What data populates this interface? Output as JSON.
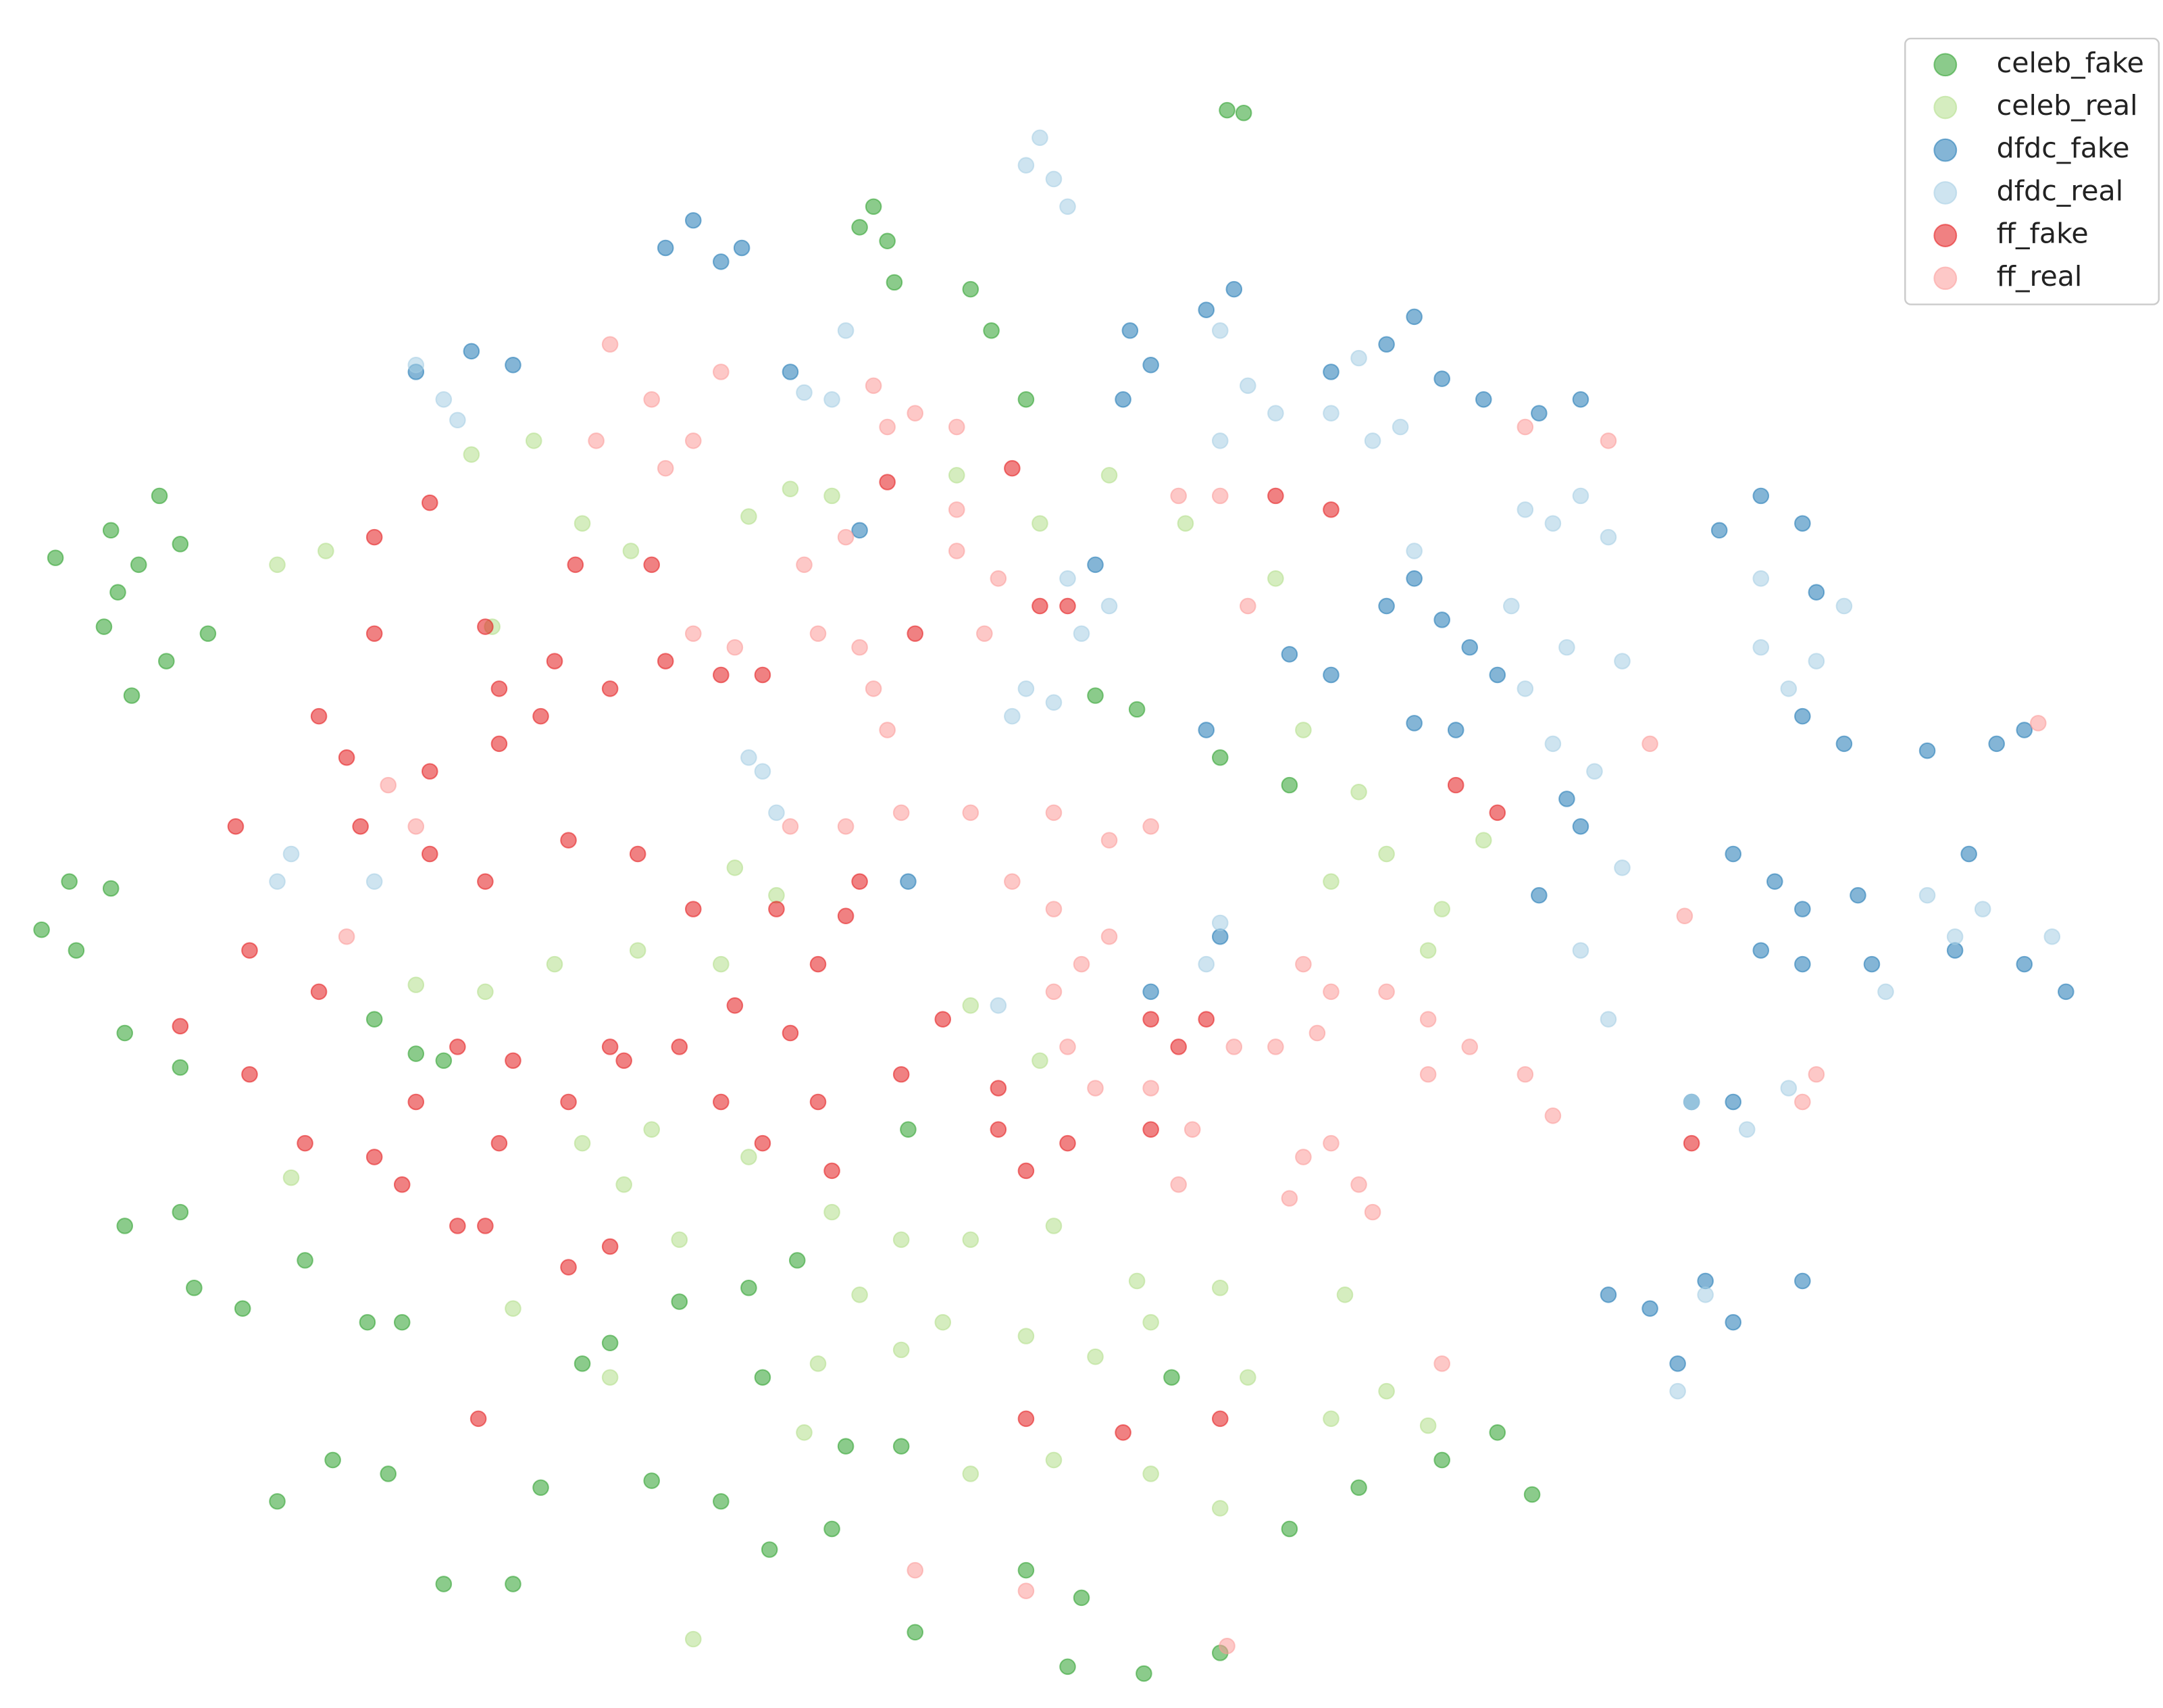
{
  "chart_data": {
    "type": "scatter",
    "xlim": [
      0,
      1560
    ],
    "ylim": [
      1240,
      0
    ],
    "alpha": 0.55,
    "legend": "upper right",
    "series": [
      {
        "name": "celeb_fake",
        "color": "#2ca02c",
        "x": [
          885,
          897,
          630,
          640,
          620,
          645,
          700,
          715,
          740,
          40,
          80,
          115,
          100,
          130,
          75,
          95,
          120,
          150,
          85,
          50,
          80,
          30,
          55,
          90,
          130,
          90,
          130,
          140,
          175,
          220,
          265,
          290,
          300,
          320,
          270,
          420,
          440,
          490,
          540,
          575,
          550,
          470,
          520,
          610,
          650,
          660,
          780,
          770,
          825,
          880,
          200,
          240,
          280,
          320,
          370,
          390,
          930,
          980,
          1040,
          1080,
          1105,
          655,
          845,
          880,
          820,
          790,
          930,
          555,
          600,
          740
        ],
        "y": [
          80,
          82,
          150,
          175,
          165,
          205,
          210,
          240,
          290,
          405,
          385,
          360,
          410,
          395,
          455,
          505,
          480,
          460,
          430,
          640,
          645,
          675,
          690,
          750,
          775,
          890,
          880,
          935,
          950,
          915,
          960,
          960,
          765,
          770,
          740,
          990,
          975,
          945,
          935,
          915,
          1000,
          1075,
          1090,
          1050,
          1050,
          1185,
          1160,
          1210,
          1215,
          1200,
          1090,
          1060,
          1070,
          1150,
          1150,
          1080,
          1110,
          1080,
          1060,
          1040,
          1085,
          820,
          1000,
          550,
          515,
          505,
          570,
          1125,
          1110,
          1140
        ]
      },
      {
        "name": "celeb_real",
        "color": "#b2df8a",
        "x": [
          200,
          235,
          340,
          385,
          355,
          420,
          455,
          540,
          570,
          600,
          690,
          750,
          800,
          855,
          920,
          940,
          980,
          1000,
          1040,
          1070,
          1030,
          960,
          530,
          560,
          520,
          460,
          400,
          350,
          300,
          210,
          420,
          450,
          490,
          600,
          650,
          700,
          760,
          820,
          880,
          970,
          620,
          680,
          740,
          790,
          830,
          900,
          960,
          1000,
          1030,
          500,
          580,
          700,
          760,
          830,
          880,
          370,
          440,
          470,
          590,
          650,
          540,
          700,
          750
        ],
        "y": [
          410,
          400,
          330,
          320,
          455,
          380,
          400,
          375,
          355,
          360,
          345,
          380,
          345,
          380,
          420,
          530,
          575,
          620,
          660,
          610,
          690,
          640,
          630,
          650,
          700,
          690,
          700,
          720,
          715,
          855,
          830,
          860,
          900,
          880,
          900,
          900,
          890,
          930,
          935,
          940,
          940,
          960,
          970,
          985,
          960,
          1000,
          1030,
          1010,
          1035,
          1190,
          1040,
          1070,
          1060,
          1070,
          1095,
          950,
          1000,
          820,
          990,
          980,
          840,
          730,
          770
        ]
      },
      {
        "name": "dfdc_fake",
        "color": "#1f78b4",
        "x": [
          480,
          500,
          520,
          535,
          340,
          370,
          300,
          570,
          815,
          830,
          810,
          870,
          890,
          960,
          1000,
          1020,
          1040,
          1070,
          1110,
          1140,
          1020,
          1040,
          1060,
          1080,
          1000,
          930,
          960,
          1020,
          1050,
          1130,
          1140,
          1240,
          1270,
          1300,
          1310,
          1300,
          1330,
          1390,
          1440,
          1460,
          1250,
          1280,
          1300,
          1340,
          1420,
          1270,
          1300,
          1350,
          1410,
          1460,
          1490,
          1160,
          1190,
          1230,
          1250,
          1300,
          1210,
          1220,
          1250,
          880,
          830,
          790,
          620,
          655,
          870,
          1110
        ],
        "y": [
          180,
          160,
          190,
          180,
          255,
          265,
          270,
          270,
          240,
          265,
          290,
          225,
          210,
          270,
          250,
          230,
          275,
          290,
          300,
          290,
          420,
          450,
          470,
          490,
          440,
          475,
          490,
          525,
          530,
          580,
          600,
          385,
          360,
          380,
          430,
          520,
          540,
          545,
          540,
          530,
          620,
          640,
          660,
          650,
          620,
          690,
          700,
          700,
          690,
          700,
          720,
          940,
          950,
          930,
          960,
          930,
          990,
          800,
          800,
          680,
          720,
          410,
          385,
          640,
          530,
          650
        ]
      },
      {
        "name": "dfdc_real",
        "color": "#a6cee3",
        "x": [
          750,
          760,
          770,
          740,
          300,
          320,
          330,
          580,
          600,
          610,
          880,
          900,
          920,
          880,
          960,
          990,
          1010,
          980,
          1100,
          1120,
          1140,
          1160,
          1020,
          1090,
          1130,
          1170,
          1100,
          1270,
          1270,
          1290,
          1310,
          1330,
          740,
          730,
          760,
          780,
          800,
          550,
          560,
          540,
          210,
          200,
          270,
          1120,
          1150,
          1170,
          1140,
          1160,
          1390,
          1410,
          1430,
          1480,
          1360,
          1220,
          1260,
          1290,
          1230,
          1210,
          880,
          870,
          720,
          770
        ],
        "y": [
          100,
          130,
          150,
          120,
          265,
          290,
          305,
          285,
          290,
          240,
          240,
          280,
          300,
          320,
          300,
          320,
          310,
          260,
          370,
          380,
          360,
          390,
          400,
          440,
          470,
          480,
          500,
          420,
          470,
          500,
          480,
          440,
          500,
          520,
          510,
          460,
          440,
          560,
          590,
          550,
          620,
          640,
          640,
          540,
          560,
          630,
          690,
          740,
          650,
          680,
          660,
          680,
          720,
          800,
          820,
          790,
          940,
          1010,
          670,
          700,
          730,
          420
        ]
      },
      {
        "name": "ff_fake",
        "color": "#e31a1c",
        "x": [
          310,
          270,
          350,
          415,
          470,
          480,
          520,
          550,
          440,
          400,
          360,
          270,
          230,
          250,
          310,
          360,
          390,
          170,
          260,
          310,
          350,
          410,
          460,
          500,
          560,
          610,
          620,
          590,
          530,
          490,
          440,
          370,
          330,
          300,
          270,
          290,
          360,
          410,
          450,
          520,
          550,
          590,
          650,
          600,
          720,
          740,
          770,
          830,
          850,
          870,
          830,
          720,
          680,
          570,
          180,
          230,
          180,
          220,
          345,
          440,
          410,
          350,
          330,
          740,
          810,
          880,
          730,
          750,
          770,
          920,
          960,
          660,
          1050,
          1080,
          1220,
          640,
          130
        ],
        "y": [
          365,
          390,
          455,
          410,
          410,
          480,
          490,
          490,
          500,
          480,
          500,
          460,
          520,
          550,
          560,
          540,
          520,
          600,
          600,
          620,
          640,
          610,
          620,
          660,
          660,
          665,
          640,
          700,
          730,
          760,
          760,
          770,
          760,
          800,
          840,
          860,
          830,
          800,
          770,
          800,
          830,
          800,
          780,
          850,
          820,
          850,
          830,
          820,
          760,
          740,
          740,
          790,
          740,
          750,
          690,
          720,
          780,
          830,
          1030,
          905,
          920,
          890,
          890,
          1030,
          1040,
          1030,
          340,
          440,
          440,
          360,
          370,
          460,
          570,
          590,
          830,
          350,
          745
        ]
      },
      {
        "name": "ff_real",
        "color": "#fb9a99",
        "x": [
          440,
          470,
          430,
          500,
          480,
          520,
          640,
          660,
          690,
          630,
          580,
          610,
          690,
          690,
          720,
          500,
          530,
          590,
          620,
          630,
          640,
          710,
          610,
          650,
          700,
          760,
          800,
          830,
          730,
          760,
          800,
          780,
          760,
          770,
          790,
          830,
          860,
          890,
          920,
          950,
          940,
          960,
          1000,
          1030,
          1030,
          1060,
          1100,
          1120,
          940,
          960,
          980,
          990,
          930,
          850,
          280,
          300,
          250,
          570,
          850,
          880,
          900,
          1190,
          1215,
          1160,
          1100,
          1470,
          1310,
          1300,
          1040,
          740,
          885,
          660
        ],
        "y": [
          250,
          290,
          320,
          320,
          340,
          270,
          310,
          300,
          310,
          280,
          410,
          390,
          400,
          370,
          420,
          460,
          470,
          460,
          470,
          500,
          530,
          460,
          600,
          590,
          590,
          590,
          610,
          600,
          640,
          660,
          680,
          700,
          720,
          760,
          790,
          790,
          820,
          760,
          760,
          750,
          700,
          720,
          720,
          740,
          780,
          760,
          780,
          810,
          840,
          830,
          860,
          880,
          870,
          860,
          570,
          600,
          680,
          600,
          360,
          360,
          440,
          540,
          665,
          320,
          310,
          525,
          780,
          800,
          990,
          1155,
          1195,
          1140
        ]
      }
    ]
  }
}
